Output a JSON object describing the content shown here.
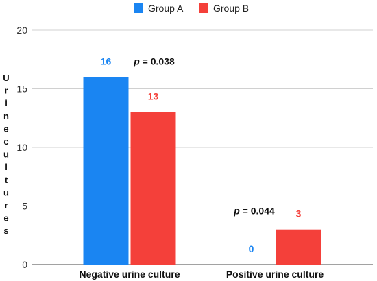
{
  "chart_data": {
    "type": "bar",
    "title": "",
    "xlabel": "",
    "ylabel": "Urine cultures",
    "ylim": [
      0,
      20
    ],
    "yticks": [
      0,
      5,
      10,
      15,
      20
    ],
    "grid": true,
    "legend_position": "top-center",
    "categories": [
      "Negative urine culture",
      "Positive urine culture"
    ],
    "series": [
      {
        "name": "Group A",
        "color": "#1a85f2",
        "values": [
          16,
          0
        ]
      },
      {
        "name": "Group B",
        "color": "#f4403a",
        "values": [
          13,
          3
        ]
      }
    ],
    "annotations": [
      {
        "category": "Negative urine culture",
        "prefix": "p",
        "text": " = 0.038"
      },
      {
        "category": "Positive urine culture",
        "prefix": "p",
        "text": " = 0.044"
      }
    ]
  }
}
